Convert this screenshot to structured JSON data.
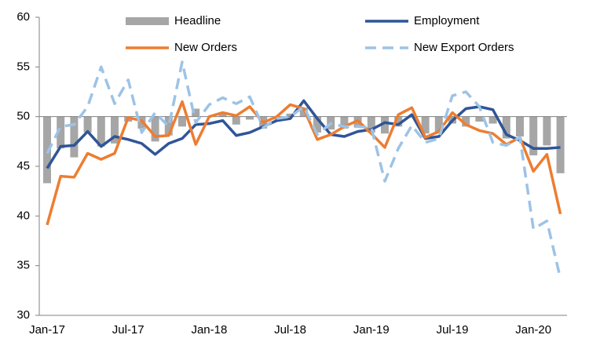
{
  "chart_data": {
    "type": "line",
    "categories": [
      "Jan-17",
      null,
      null,
      null,
      null,
      null,
      "Jul-17",
      null,
      null,
      null,
      null,
      null,
      "Jan-18",
      null,
      null,
      null,
      null,
      null,
      "Jul-18",
      null,
      null,
      null,
      null,
      null,
      "Jan-19",
      null,
      null,
      null,
      null,
      null,
      "Jul-19",
      null,
      null,
      null,
      null,
      null,
      "Jan-20",
      null,
      null
    ],
    "ylim": [
      30,
      60
    ],
    "yticks": [
      30,
      35,
      40,
      45,
      50,
      55,
      60
    ],
    "x_axis_crosses": 50,
    "series": [
      {
        "name": "Headline",
        "type": "bar",
        "color": "#a6a6a6",
        "values": [
          43.3,
          46.8,
          45.9,
          48.4,
          47.0,
          47.3,
          49.5,
          48.8,
          47.5,
          48.1,
          49.0,
          50.8,
          50.0,
          50.3,
          49.2,
          49.7,
          48.8,
          49.7,
          50.3,
          50.9,
          48.4,
          48.7,
          48.8,
          48.9,
          48.4,
          48.3,
          49.0,
          49.9,
          48.3,
          48.3,
          49.3,
          49.0,
          49.5,
          49.3,
          47.8,
          48.0,
          46.1,
          47.1,
          44.3
        ]
      },
      {
        "name": "Employment",
        "type": "line",
        "color": "#2f5597",
        "dashed": false,
        "values": [
          44.8,
          47.0,
          47.1,
          48.5,
          47.0,
          48.0,
          47.7,
          47.3,
          46.2,
          47.3,
          47.8,
          49.2,
          49.3,
          49.6,
          48.1,
          48.4,
          49.0,
          49.6,
          49.8,
          51.6,
          49.8,
          48.2,
          48.0,
          48.5,
          48.7,
          49.4,
          49.2,
          50.2,
          47.8,
          48.0,
          49.6,
          50.8,
          51.0,
          50.7,
          48.2,
          47.6,
          46.8,
          46.8,
          46.9
        ]
      },
      {
        "name": "New Orders",
        "type": "line",
        "color": "#ed7d31",
        "dashed": false,
        "values": [
          39.1,
          44.0,
          43.9,
          46.3,
          45.7,
          46.3,
          49.9,
          49.6,
          48.0,
          48.1,
          51.5,
          47.2,
          50.0,
          50.4,
          50.1,
          51.0,
          49.4,
          50.0,
          51.2,
          50.8,
          47.7,
          48.2,
          49.0,
          49.6,
          48.3,
          46.9,
          50.2,
          50.9,
          47.9,
          48.5,
          50.4,
          49.2,
          48.6,
          48.3,
          47.2,
          47.9,
          44.5,
          46.2,
          40.2
        ]
      },
      {
        "name": "New Export Orders",
        "type": "line",
        "color": "#9dc3e6",
        "dashed": true,
        "values": [
          46.3,
          49.0,
          49.2,
          51.0,
          55.0,
          51.3,
          53.7,
          48.4,
          50.4,
          49.0,
          55.5,
          49.4,
          51.2,
          51.9,
          51.3,
          52.0,
          48.9,
          49.8,
          50.0,
          51.0,
          48.2,
          49.3,
          49.0,
          49.0,
          48.9,
          43.5,
          46.8,
          49.1,
          47.4,
          47.8,
          52.1,
          52.5,
          51.0,
          47.4,
          47.1,
          47.9,
          38.7,
          39.5,
          33.7
        ]
      }
    ]
  }
}
